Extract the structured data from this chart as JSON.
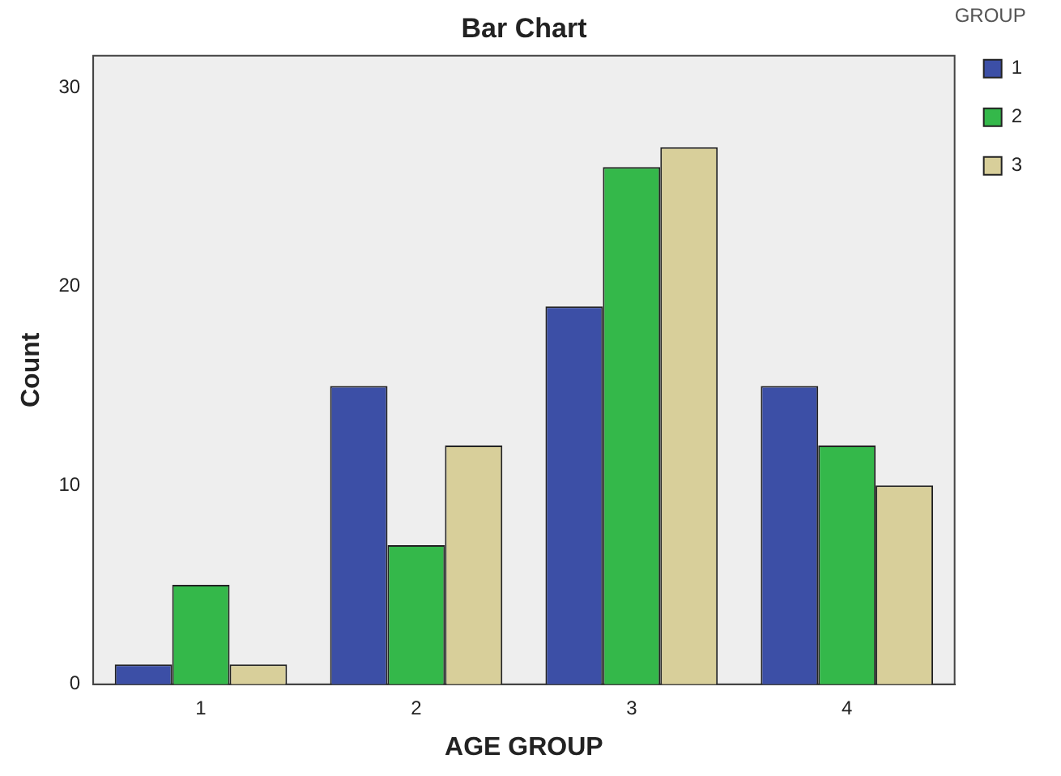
{
  "chart_data": {
    "type": "bar",
    "title": "Bar Chart",
    "xlabel": "AGE GROUP",
    "ylabel": "Count",
    "legend_title": "GROUP",
    "categories": [
      "1",
      "2",
      "3",
      "4"
    ],
    "series": [
      {
        "name": "1",
        "color": "#3c4fa6",
        "values": [
          1,
          15,
          19,
          15
        ]
      },
      {
        "name": "2",
        "color": "#34b84a",
        "values": [
          5,
          7,
          26,
          12
        ]
      },
      {
        "name": "3",
        "color": "#d8cf9a",
        "values": [
          1,
          12,
          27,
          10
        ]
      }
    ],
    "ylim": [
      0,
      31.6
    ],
    "yticks": [
      0,
      10,
      20,
      30
    ],
    "grid": false,
    "legend": "right"
  }
}
